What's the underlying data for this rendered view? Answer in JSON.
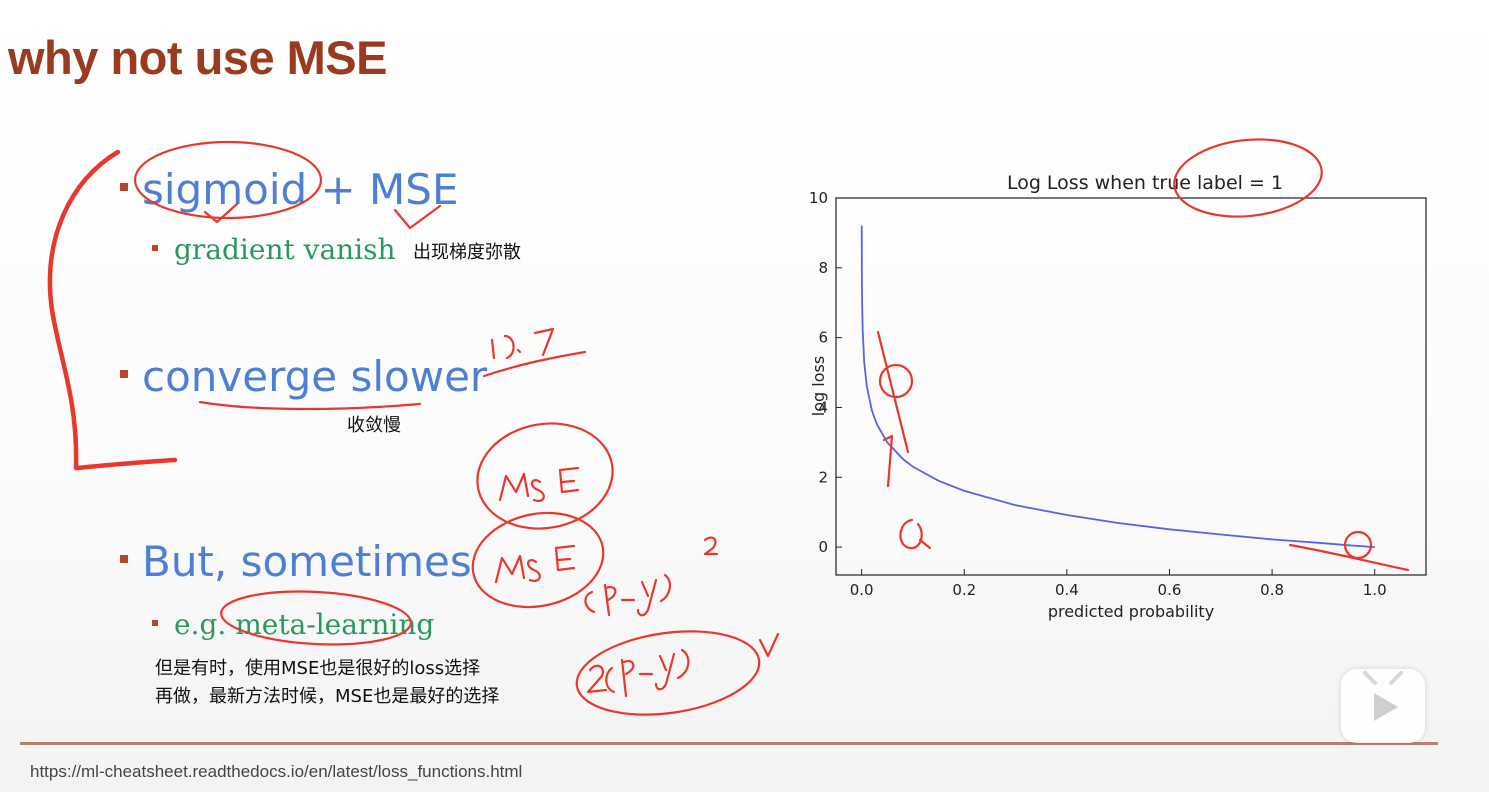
{
  "slide": {
    "title": "why not use MSE",
    "bullets": [
      {
        "text": "sigmoid + MSE",
        "sub": "gradient vanish",
        "note": "出现梯度弥散"
      },
      {
        "text": "converge slower",
        "note": "收敛慢"
      },
      {
        "text": "But, sometimes",
        "sub": "e.g. meta-learning",
        "notes": [
          "但是有时，使用MSE也是很好的loss选择",
          "再做，最新方法时候，MSE也是最好的选择"
        ]
      }
    ],
    "source_url": "https://ml-cheatsheet.readthedocs.io/en/latest/loss_functions.html"
  },
  "annotations": {
    "handwriting": [
      "0.7",
      "MSE",
      "MSE",
      "(p-y)²",
      "2(p-y)",
      "Q"
    ]
  },
  "player": {
    "icon": "play-icon",
    "accent": "#ffffff"
  },
  "colors": {
    "title": "#9a3a1e",
    "bullet": "#4d7fd4",
    "sub": "#2a9a5c",
    "ink": "#e8382b",
    "curve": "#5b63e0"
  },
  "chart_data": {
    "type": "line",
    "title": "Log Loss when true label = 1",
    "xlabel": "predicted probability",
    "ylabel": "log loss",
    "xlim": [
      -0.05,
      1.1
    ],
    "ylim": [
      -0.8,
      10
    ],
    "xticks": [
      "0.0",
      "0.2",
      "0.4",
      "0.6",
      "0.8",
      "1.0"
    ],
    "yticks": [
      "0",
      "2",
      "4",
      "6",
      "8",
      "10"
    ],
    "series": [
      {
        "x": [
          0.0001,
          0.0005,
          0.001,
          0.002,
          0.005,
          0.01,
          0.02,
          0.03,
          0.05,
          0.08,
          0.1,
          0.15,
          0.2,
          0.3,
          0.4,
          0.5,
          0.6,
          0.7,
          0.8,
          0.9,
          0.95,
          1.0
        ],
        "y": [
          9.21,
          7.6,
          6.91,
          6.21,
          5.3,
          4.61,
          3.91,
          3.51,
          3.0,
          2.53,
          2.3,
          1.9,
          1.61,
          1.2,
          0.92,
          0.69,
          0.51,
          0.36,
          0.22,
          0.11,
          0.05,
          0.0
        ],
        "color": "#5b63e0"
      }
    ]
  }
}
